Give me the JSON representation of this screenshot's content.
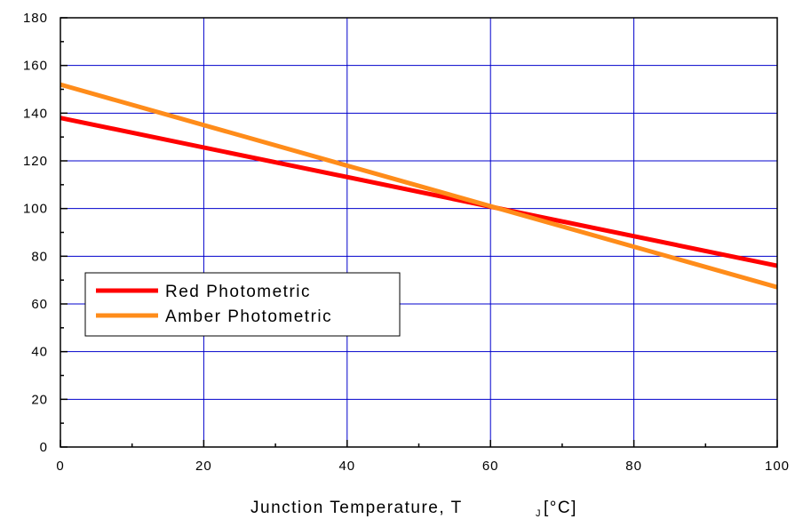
{
  "chart_data": {
    "type": "line",
    "xlabel_text": "Junction Temperature, T",
    "xlabel_subscript": "J",
    "xlabel_unit": "[°C]",
    "xlim": [
      0,
      100
    ],
    "ylim": [
      0,
      180
    ],
    "x_ticks": [
      0,
      20,
      40,
      60,
      80,
      100
    ],
    "y_ticks": [
      0,
      20,
      40,
      60,
      80,
      100,
      120,
      140,
      160,
      180
    ],
    "grid": true,
    "legend_position": "lower-left",
    "series": [
      {
        "name": "Red Photometric",
        "color": "#ff0000",
        "x": [
          0,
          100
        ],
        "y": [
          138,
          76
        ]
      },
      {
        "name": "Amber Photometric",
        "color": "#ff8c1a",
        "x": [
          0,
          100
        ],
        "y": [
          152,
          67
        ]
      }
    ]
  }
}
